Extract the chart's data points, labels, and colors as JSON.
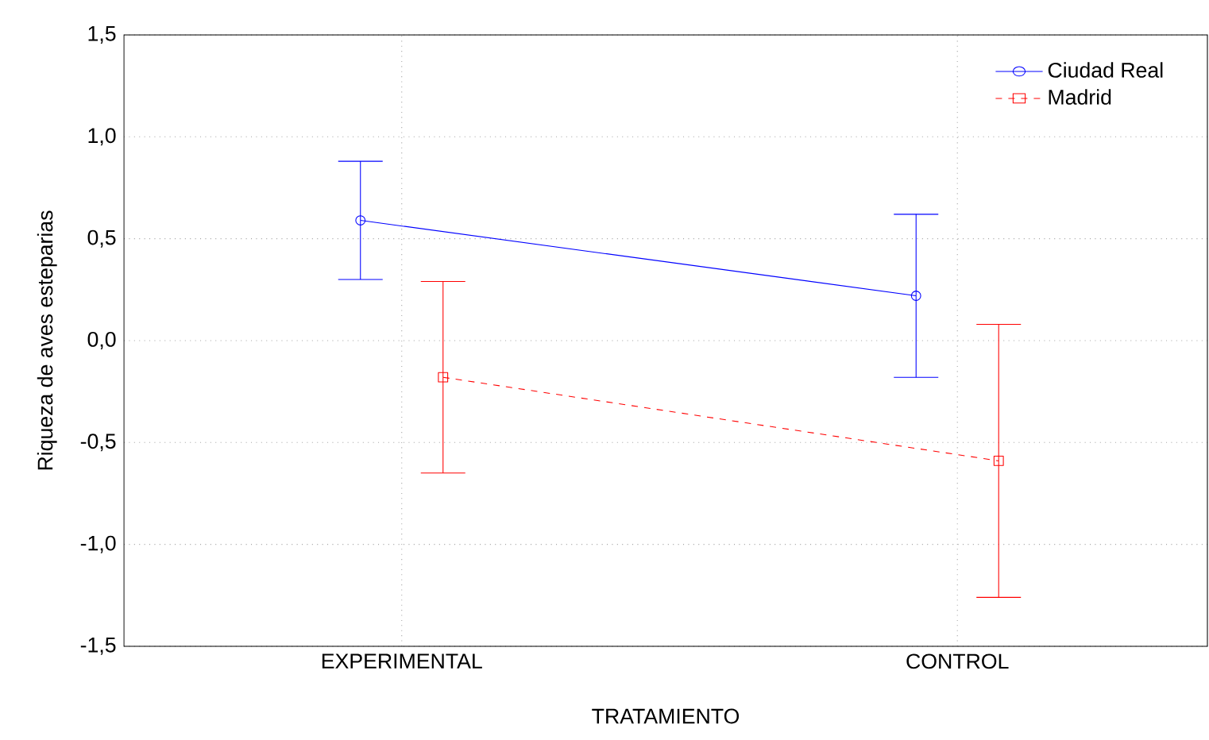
{
  "chart_data": {
    "type": "line",
    "xlabel": "TRATAMIENTO",
    "ylabel": "Riqueza de aves esteparias",
    "categories": [
      "EXPERIMENTAL",
      "CONTROL"
    ],
    "series": [
      {
        "name": "Ciudad Real",
        "color": "#0000ff",
        "values": [
          0.59,
          0.22
        ],
        "errors": [
          0.29,
          0.4
        ],
        "marker": "circle",
        "line_style": "solid"
      },
      {
        "name": "Madrid",
        "color": "#ff0000",
        "values": [
          -0.18,
          -0.59
        ],
        "errors": [
          0.47,
          0.67
        ],
        "marker": "square",
        "line_style": "dashed"
      }
    ],
    "ylim": [
      -1.5,
      1.5
    ],
    "yticks": [
      {
        "value": -1.5,
        "label": "-1,5"
      },
      {
        "value": -1.0,
        "label": "-1,0"
      },
      {
        "value": -0.5,
        "label": "-0,5"
      },
      {
        "value": 0.0,
        "label": "0,0"
      },
      {
        "value": 0.5,
        "label": "0,5"
      },
      {
        "value": 1.0,
        "label": "1,0"
      },
      {
        "value": 1.5,
        "label": "1,5"
      }
    ],
    "grid": true,
    "legend": "top right"
  }
}
